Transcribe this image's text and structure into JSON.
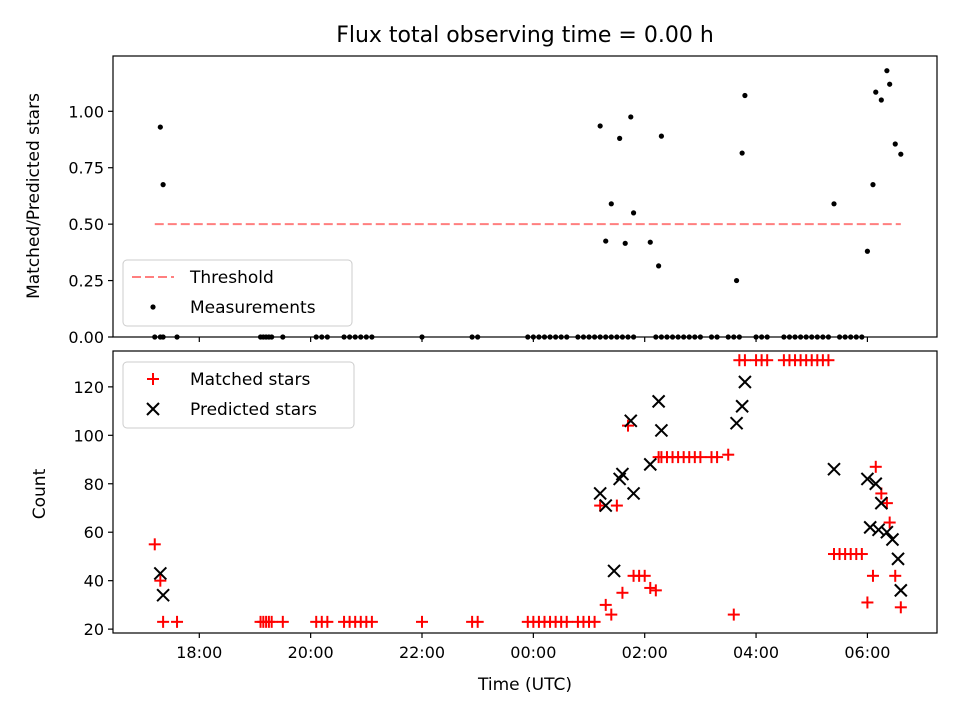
{
  "colors": {
    "threshold": "#ff7f7f",
    "measurement": "#000000",
    "matched": "#ff0000",
    "predicted": "#000000",
    "legend_border": "#cccccc"
  },
  "chart_data": [
    {
      "type": "scatter",
      "title": "Flux total observing time = 0.00 h",
      "ylabel": "Matched/Predicted stars",
      "xlabel": "",
      "ylim": [
        0,
        1.245
      ],
      "yticks": [
        0.0,
        0.25,
        0.5,
        0.75,
        1.0
      ],
      "ytick_labels": [
        "0.00",
        "0.25",
        "0.50",
        "0.75",
        "1.00"
      ],
      "legend_position": "lower-left",
      "threshold": {
        "name": "Threshold",
        "y": 0.5,
        "x_start": 17.2,
        "x_end": 30.6,
        "style": "dashed"
      },
      "series": [
        {
          "name": "Measurements",
          "marker": "dot",
          "x": [
            17.2,
            17.3,
            17.35,
            17.6,
            19.1,
            19.15,
            19.2,
            19.25,
            19.3,
            19.5,
            20.1,
            20.2,
            20.3,
            20.6,
            20.7,
            20.8,
            20.9,
            21.0,
            21.1,
            22.0,
            22.9,
            23.0,
            23.9,
            24.0,
            24.1,
            24.2,
            24.3,
            24.4,
            24.5,
            24.6,
            24.8,
            24.9,
            25.0,
            25.1,
            25.2,
            25.3,
            25.4,
            25.5,
            25.6,
            25.7,
            25.8,
            26.2,
            26.3,
            26.4,
            26.5,
            26.6,
            26.7,
            26.8,
            26.9,
            27.0,
            27.2,
            27.3,
            27.5,
            27.6,
            27.7,
            28.0,
            28.1,
            28.2,
            28.5,
            28.6,
            28.7,
            28.8,
            28.9,
            29.0,
            29.1,
            29.2,
            29.3,
            29.5,
            29.6,
            29.7,
            29.8,
            29.9,
            17.3,
            17.35,
            25.2,
            25.3,
            25.4,
            25.55,
            25.65,
            25.75,
            25.8,
            26.1,
            26.25,
            26.3,
            27.65,
            27.75,
            27.8,
            29.4,
            30.0,
            30.1,
            30.15,
            30.25,
            30.35,
            30.4,
            30.5,
            30.6
          ],
          "y": [
            0.0,
            0.0,
            0.0,
            0.0,
            0.0,
            0.0,
            0.0,
            0.0,
            0.0,
            0.0,
            0.0,
            0.0,
            0.0,
            0.0,
            0.0,
            0.0,
            0.0,
            0.0,
            0.0,
            0.0,
            0.0,
            0.0,
            0.0,
            0.0,
            0.0,
            0.0,
            0.0,
            0.0,
            0.0,
            0.0,
            0.0,
            0.0,
            0.0,
            0.0,
            0.0,
            0.0,
            0.0,
            0.0,
            0.0,
            0.0,
            0.0,
            0.0,
            0.0,
            0.0,
            0.0,
            0.0,
            0.0,
            0.0,
            0.0,
            0.0,
            0.0,
            0.0,
            0.0,
            0.0,
            0.0,
            0.0,
            0.0,
            0.0,
            0.0,
            0.0,
            0.0,
            0.0,
            0.0,
            0.0,
            0.0,
            0.0,
            0.0,
            0.0,
            0.0,
            0.0,
            0.0,
            0.0,
            0.93,
            0.675,
            0.935,
            0.425,
            0.59,
            0.88,
            0.415,
            0.975,
            0.55,
            0.42,
            0.315,
            0.89,
            0.25,
            0.815,
            1.07,
            0.59,
            0.38,
            0.675,
            1.085,
            1.05,
            1.18,
            1.12,
            0.855,
            0.81
          ]
        }
      ]
    },
    {
      "type": "scatter",
      "title": "",
      "xlabel": "Time (UTC)",
      "ylabel": "Count",
      "xlim": [
        16.45,
        31.25
      ],
      "xticks": [
        18,
        20,
        22,
        24,
        26,
        28,
        30
      ],
      "xtick_labels": [
        "18:00",
        "20:00",
        "22:00",
        "00:00",
        "02:00",
        "04:00",
        "06:00"
      ],
      "ylim": [
        18.4,
        134.8
      ],
      "yticks": [
        20,
        40,
        60,
        80,
        100,
        120
      ],
      "ytick_labels": [
        "20",
        "40",
        "60",
        "80",
        "100",
        "120"
      ],
      "legend_position": "upper-left",
      "series": [
        {
          "name": "Matched stars",
          "marker": "plus",
          "x": [
            17.2,
            17.3,
            17.35,
            17.6,
            19.1,
            19.15,
            19.2,
            19.25,
            19.3,
            19.5,
            20.1,
            20.2,
            20.3,
            20.6,
            20.7,
            20.8,
            20.9,
            21.0,
            21.1,
            22.0,
            22.9,
            23.0,
            23.9,
            24.0,
            24.1,
            24.2,
            24.3,
            24.4,
            24.5,
            24.6,
            24.8,
            24.9,
            25.0,
            25.1,
            25.2,
            25.3,
            25.4,
            25.5,
            25.6,
            25.7,
            25.8,
            25.9,
            26.0,
            26.1,
            26.2,
            26.25,
            26.3,
            26.4,
            26.5,
            26.6,
            26.7,
            26.8,
            26.9,
            27.0,
            27.2,
            27.3,
            27.5,
            27.6,
            27.7,
            27.8,
            28.0,
            28.1,
            28.2,
            28.5,
            28.6,
            28.7,
            28.8,
            28.9,
            29.0,
            29.1,
            29.2,
            29.3,
            29.4,
            29.5,
            29.6,
            29.7,
            29.8,
            29.9,
            30.0,
            30.1,
            30.15,
            30.25,
            30.35,
            30.4,
            30.5,
            30.6
          ],
          "y": [
            55,
            40,
            23,
            23,
            23,
            23,
            23,
            23,
            23,
            23,
            23,
            23,
            23,
            23,
            23,
            23,
            23,
            23,
            23,
            23,
            23,
            23,
            23,
            23,
            23,
            23,
            23,
            23,
            23,
            23,
            23,
            23,
            23,
            23,
            71,
            30,
            26,
            71,
            35,
            104,
            42,
            42,
            42,
            37,
            36,
            91,
            91,
            91,
            91,
            91,
            91,
            91,
            91,
            91,
            91,
            91,
            92,
            26,
            131,
            131,
            131,
            131,
            131,
            131,
            131,
            131,
            131,
            131,
            131,
            131,
            131,
            131,
            51,
            51,
            51,
            51,
            51,
            51,
            31,
            42,
            87,
            76,
            72,
            64,
            42,
            29
          ]
        },
        {
          "name": "Predicted stars",
          "marker": "x",
          "x": [
            17.3,
            17.35,
            25.2,
            25.3,
            25.45,
            25.55,
            25.6,
            25.75,
            25.8,
            26.1,
            26.25,
            26.3,
            27.65,
            27.75,
            27.8,
            29.4,
            30.0,
            30.05,
            30.15,
            30.2,
            30.25,
            30.35,
            30.45,
            30.55,
            30.6
          ],
          "y": [
            43,
            34,
            76,
            71,
            44,
            82,
            84,
            106,
            76,
            88,
            114,
            102,
            105,
            112,
            122,
            86,
            82,
            62,
            80,
            61,
            72,
            60,
            57,
            49,
            36
          ]
        }
      ]
    }
  ]
}
